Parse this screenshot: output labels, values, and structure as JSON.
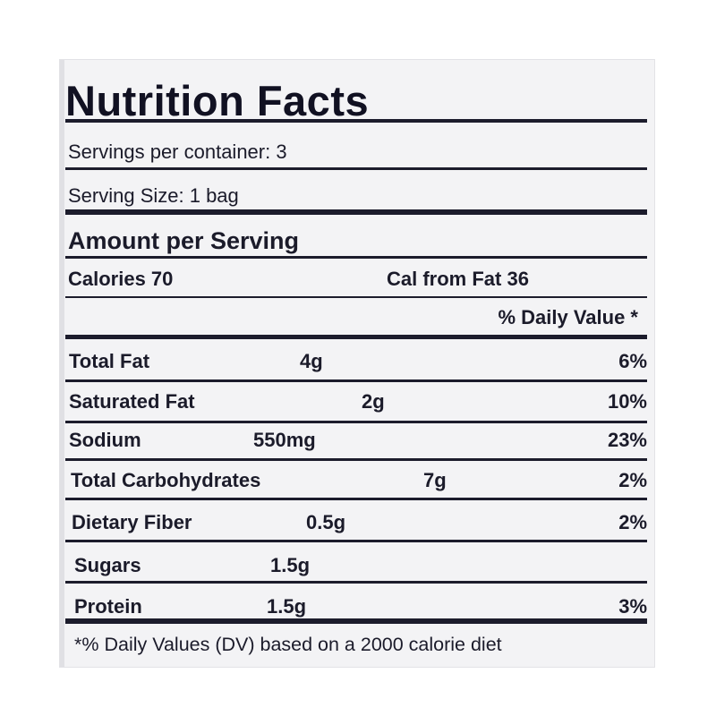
{
  "label": {
    "title": "Nutrition Facts",
    "servings_per_container": "Servings per container: 3",
    "serving_size": "Serving Size: 1 bag",
    "amount_per_serving": "Amount per Serving",
    "calories": "Calories 70",
    "cal_from_fat": "Cal from Fat 36",
    "daily_value_header": "% Daily Value *",
    "nutrients": [
      {
        "name": "Total Fat",
        "amount": "4g",
        "dv": "6%"
      },
      {
        "name": "Saturated Fat",
        "amount": "2g",
        "dv": "10%"
      },
      {
        "name": "Sodium",
        "amount": "550mg",
        "dv": "23%"
      },
      {
        "name": "Total Carbohydrates",
        "amount": "7g",
        "dv": "2%"
      },
      {
        "name": "Dietary Fiber",
        "amount": "0.5g",
        "dv": "2%"
      },
      {
        "name": "Sugars",
        "amount": "1.5g",
        "dv": ""
      },
      {
        "name": "Protein",
        "amount": "1.5g",
        "dv": "3%"
      }
    ],
    "footnote": "*% Daily Values (DV) based on a 2000 calorie diet"
  }
}
